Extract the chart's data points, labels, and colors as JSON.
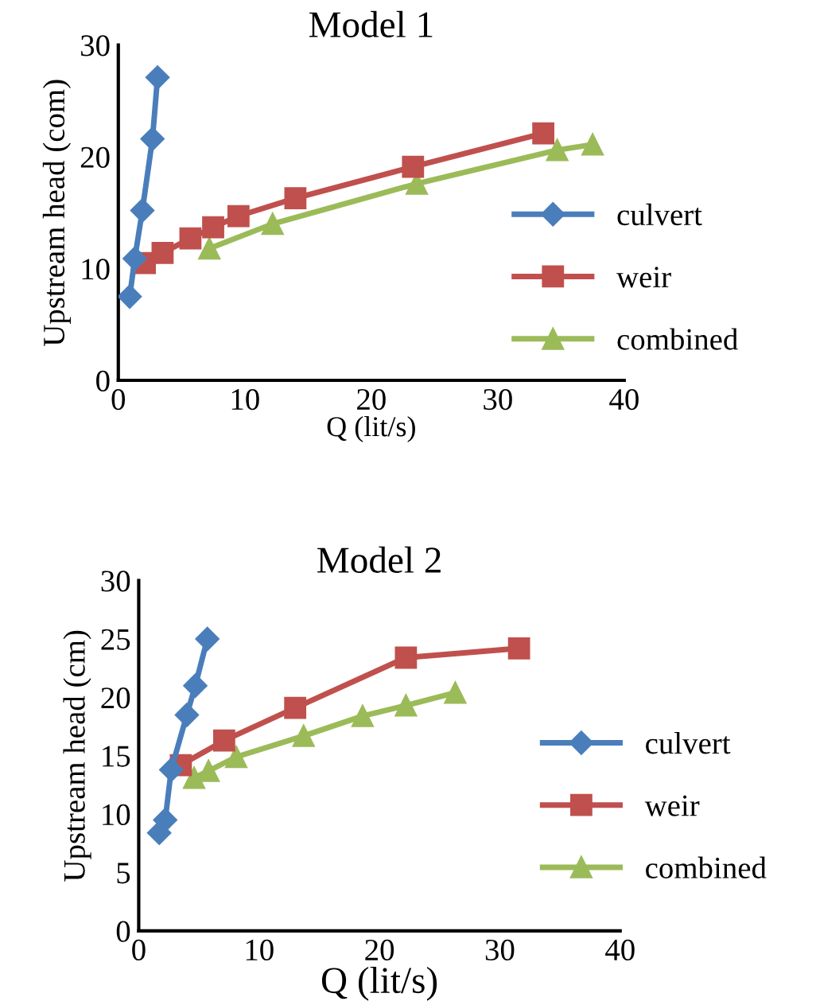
{
  "chart_data": [
    {
      "type": "line",
      "title": "Model 1",
      "xlabel": "Q (lit/s)",
      "ylabel": "Upstream head (com)",
      "xlim": [
        0,
        40
      ],
      "xticks": [
        0,
        10,
        20,
        30,
        40
      ],
      "ylim": [
        0,
        30
      ],
      "yticks": [
        0,
        10,
        20,
        30
      ],
      "grid": false,
      "legend": "right",
      "series": [
        {
          "name": "culvert",
          "color": "#4a7ebb",
          "marker": "diamond",
          "x": [
            0.9,
            1.3,
            1.9,
            2.7,
            3.1
          ],
          "values": [
            7.5,
            10.9,
            15.2,
            21.6,
            27.1
          ]
        },
        {
          "name": "weir",
          "color": "#c0504d",
          "marker": "square",
          "x": [
            2.1,
            3.5,
            5.7,
            7.5,
            9.5,
            14.0,
            23.3,
            33.6
          ],
          "values": [
            10.5,
            11.4,
            12.7,
            13.7,
            14.7,
            16.3,
            19.1,
            22.1
          ]
        },
        {
          "name": "combined",
          "color": "#9bbb59",
          "marker": "triangle",
          "x": [
            7.2,
            12.2,
            23.6,
            34.7,
            37.5
          ],
          "values": [
            11.8,
            14.0,
            17.6,
            20.6,
            21.1
          ]
        }
      ]
    },
    {
      "type": "line",
      "title": "Model 2",
      "xlabel": "Q (lit/s)",
      "ylabel": "Upstream head (cm)",
      "xlim": [
        0,
        40
      ],
      "xticks": [
        0,
        10,
        20,
        30,
        40
      ],
      "ylim": [
        0,
        30
      ],
      "yticks": [
        0,
        5,
        10,
        15,
        20,
        25,
        30
      ],
      "grid": false,
      "legend": "right",
      "series": [
        {
          "name": "culvert",
          "color": "#4a7ebb",
          "marker": "diamond",
          "x": [
            1.7,
            2.2,
            2.7,
            4.0,
            4.7,
            5.7
          ],
          "values": [
            8.4,
            9.5,
            13.8,
            18.5,
            21.0,
            25.0
          ]
        },
        {
          "name": "weir",
          "color": "#c0504d",
          "marker": "square",
          "x": [
            3.5,
            7.1,
            13.0,
            22.2,
            31.6
          ],
          "values": [
            14.2,
            16.3,
            19.1,
            23.4,
            24.2
          ]
        },
        {
          "name": "combined",
          "color": "#9bbb59",
          "marker": "triangle",
          "x": [
            4.6,
            5.8,
            8.1,
            13.7,
            18.6,
            22.2,
            26.3
          ],
          "values": [
            13.1,
            13.7,
            14.9,
            16.7,
            18.4,
            19.3,
            20.4
          ]
        }
      ]
    }
  ]
}
